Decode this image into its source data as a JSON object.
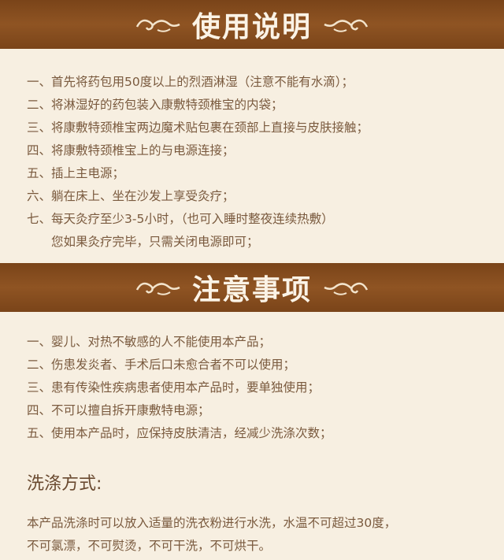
{
  "usage": {
    "title": "使用说明",
    "items": [
      "一、首先将药包用50度以上的烈酒淋湿（注意不能有水滴）；",
      "二、将淋湿好的药包装入康敷特颈椎宝的内袋；",
      "三、将康敷特颈椎宝两边魔术贴包裹在颈部上直接与皮肤接触；",
      "四、将康敷特颈椎宝上的与电源连接；",
      "五、插上主电源；",
      "六、躺在床上、坐在沙发上享受灸疗；",
      "七、每天灸疗至少3-5小时，（也可入睡时整夜连续热敷）"
    ],
    "continuation": "您如果灸疗完毕，只需关闭电源即可；"
  },
  "notes": {
    "title": "注意事项",
    "items": [
      "一、婴儿、对热不敏感的人不能使用本产品；",
      "二、伤患发炎者、手术后口未愈合者不可以使用；",
      "三、患有传染性疾病患者使用本产品时，要单独使用；",
      "四、不可以擅自拆开康敷特电源；",
      "五、使用本产品时，应保持皮肤清洁，经减少洗涤次数；"
    ]
  },
  "washing": {
    "heading": "洗涤方式:",
    "line1": "本产品洗涤时可以放入适量的洗衣粉进行水洗，水温不可超过30度，",
    "line2": "不可氯漂，不可熨烫，不可干洗，不可烘干。"
  },
  "colors": {
    "banner": "#8f5423",
    "background": "#f7efe1",
    "text": "#7a5a3e"
  },
  "icons": [
    "cloud-swirl-left-icon",
    "cloud-swirl-right-icon"
  ]
}
